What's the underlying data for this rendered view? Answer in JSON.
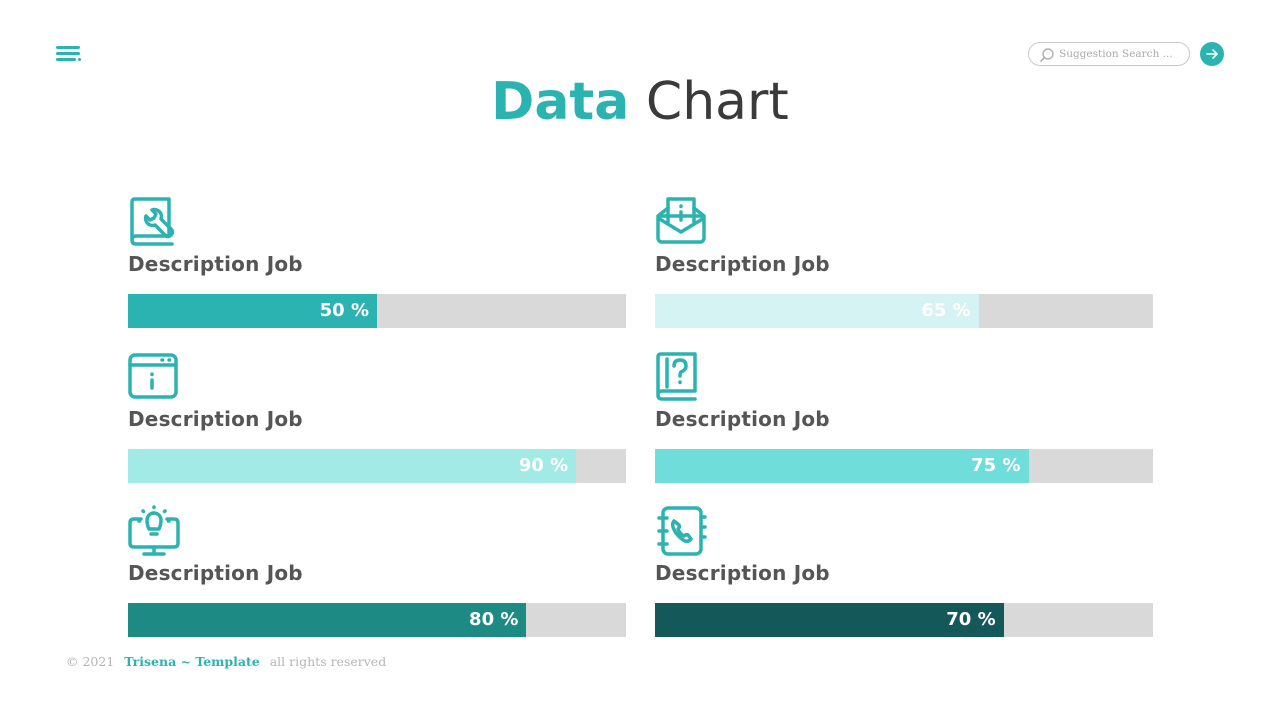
{
  "search": {
    "placeholder": "Suggestion Search ..."
  },
  "title": {
    "accent": "Data",
    "rest": "Chart"
  },
  "colors": {
    "accent": "#2ab3b1",
    "track": "#d9d9d9",
    "label": "#555555"
  },
  "chart_data": {
    "type": "bar",
    "orientation": "horizontal",
    "xlim": [
      0,
      100
    ],
    "items": [
      {
        "label": "Description Job",
        "value": 50,
        "display": "50 %",
        "color": "#2ab3b1",
        "icon": "book-wrench-icon"
      },
      {
        "label": "Description Job",
        "value": 65,
        "display": "65 %",
        "color": "#d4f3f2",
        "icon": "envelope-info-icon"
      },
      {
        "label": "Description Job",
        "value": 90,
        "display": "90 %",
        "color": "#a1eae6",
        "icon": "browser-info-icon"
      },
      {
        "label": "Description Job",
        "value": 75,
        "display": "75 %",
        "color": "#6fdedb",
        "icon": "book-question-icon"
      },
      {
        "label": "Description Job",
        "value": 80,
        "display": "80 %",
        "color": "#1e8a84",
        "icon": "monitor-lightbulb-icon"
      },
      {
        "label": "Description Job",
        "value": 70,
        "display": "70 %",
        "color": "#14585a",
        "icon": "address-book-phone-icon"
      }
    ]
  },
  "footer": {
    "copyright": "© 2021",
    "brand": "Trisena ~ Template",
    "rights": "all rights reserved"
  }
}
